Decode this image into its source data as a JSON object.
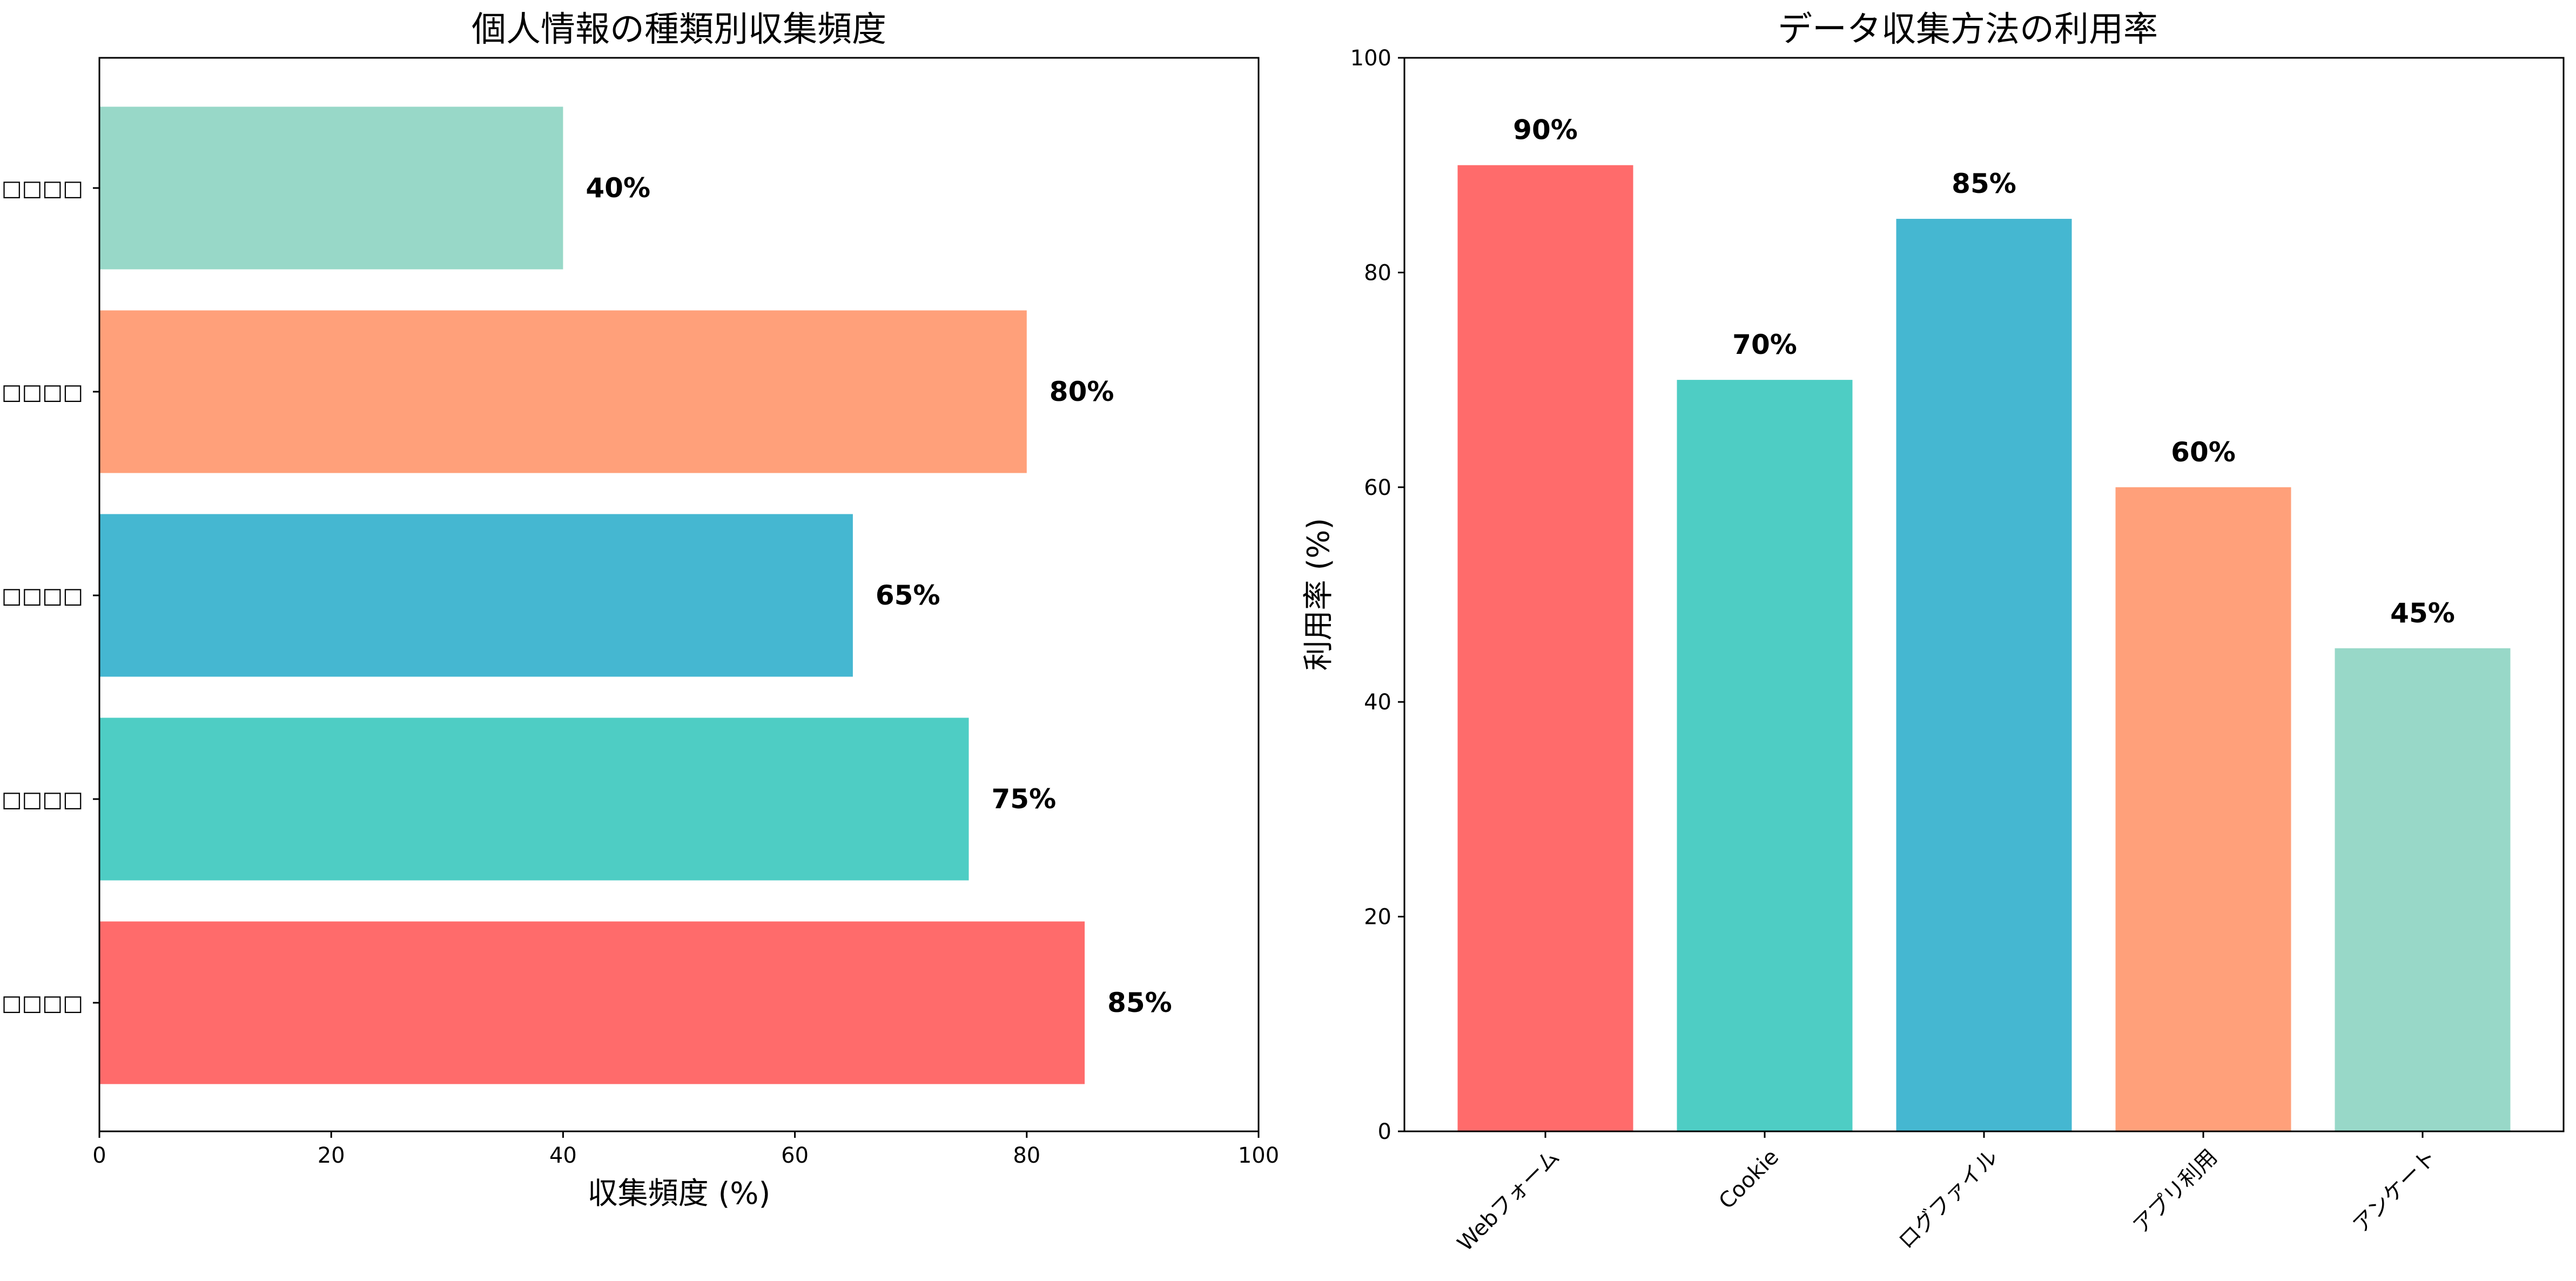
{
  "chart_data": [
    {
      "type": "bar",
      "orientation": "horizontal",
      "title": "個人情報の種類別収集頻度",
      "xlabel": "収集頻度 (%)",
      "ylabel": "",
      "xlim": [
        0,
        100
      ],
      "xticks": [
        "0",
        "20",
        "40",
        "60",
        "80",
        "100"
      ],
      "categories": [
        "□□□□",
        "□□□□□",
        "□□□□",
        "□□□□",
        "□□□□"
      ],
      "values": [
        85,
        75,
        65,
        80,
        40
      ],
      "value_labels": [
        "85%",
        "75%",
        "65%",
        "80%",
        "40%"
      ],
      "colors": [
        "#FF6B6B",
        "#4ECDC4",
        "#45B7D1",
        "#FFA07A",
        "#98D8C8"
      ],
      "grid": false,
      "legend": "none"
    },
    {
      "type": "bar",
      "orientation": "vertical",
      "title": "データ収集方法の利用率",
      "xlabel": "",
      "ylabel": "利用率 (%)",
      "ylim": [
        0,
        100
      ],
      "yticks": [
        "0",
        "20",
        "40",
        "60",
        "80",
        "100"
      ],
      "categories": [
        "Webフォーム",
        "Cookie",
        "ログファイル",
        "アプリ利用",
        "アンケート"
      ],
      "values": [
        90,
        70,
        85,
        60,
        45
      ],
      "value_labels": [
        "90%",
        "70%",
        "85%",
        "60%",
        "45%"
      ],
      "colors": [
        "#FF6B6B",
        "#4ECDC4",
        "#45B7D1",
        "#FFA07A",
        "#98D8C8"
      ],
      "grid": false,
      "legend": "none"
    }
  ]
}
